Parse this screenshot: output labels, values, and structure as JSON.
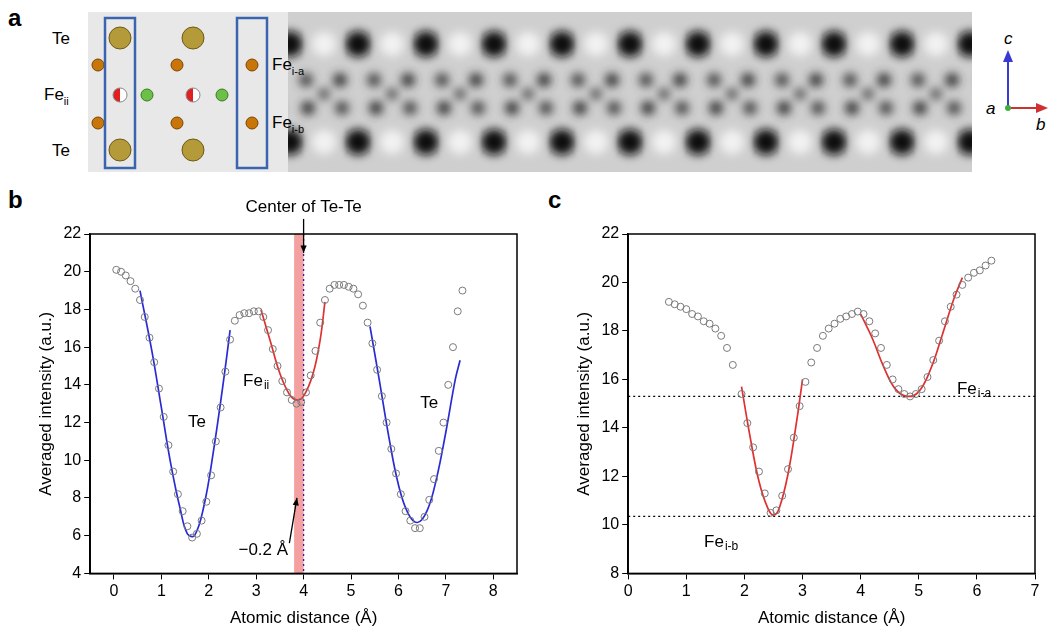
{
  "panel_a": {
    "label": "a",
    "atom_labels_left": [
      {
        "text": "Te"
      },
      {
        "text": "Fe",
        "subscript": "ii"
      },
      {
        "text": "Te"
      }
    ],
    "atom_labels_right": [
      {
        "text": "Fe",
        "subscript": "i-a"
      },
      {
        "text": "Fe",
        "subscript": "i-b"
      }
    ],
    "axes": {
      "up": "c",
      "out": "a",
      "right": "b"
    }
  },
  "chart_data": [
    {
      "panel": "b",
      "type": "scatter",
      "x_label": "Atomic distance (Å)",
      "y_label": "Averaged intensity (a.u.)",
      "xlim": [
        -0.5,
        8.5
      ],
      "xticks": [
        0,
        1,
        2,
        3,
        4,
        5,
        6,
        7,
        8
      ],
      "ylim": [
        4,
        22
      ],
      "yticks": [
        4,
        6,
        8,
        10,
        12,
        14,
        16,
        18,
        20,
        22
      ],
      "grid": false,
      "series": [
        {
          "type": "scatter",
          "marker": "circle_open",
          "color": "#7a7a7a",
          "x": [
            0.05,
            0.15,
            0.25,
            0.35,
            0.45,
            0.55,
            0.65,
            0.75,
            0.85,
            0.95,
            1.05,
            1.15,
            1.25,
            1.35,
            1.45,
            1.55,
            1.65,
            1.75,
            1.85,
            1.95,
            2.05,
            2.15,
            2.25,
            2.35,
            2.45,
            2.55,
            2.65,
            2.75,
            2.85,
            2.95,
            3.05,
            3.15,
            3.25,
            3.35,
            3.45,
            3.55,
            3.65,
            3.75,
            3.85,
            3.95,
            4.05,
            4.15,
            4.25,
            4.35,
            4.45,
            4.55,
            4.65,
            4.75,
            4.85,
            4.95,
            5.05,
            5.15,
            5.25,
            5.35,
            5.45,
            5.55,
            5.65,
            5.75,
            5.85,
            5.95,
            6.05,
            6.15,
            6.25,
            6.35,
            6.45,
            6.55,
            6.65,
            6.75,
            6.85,
            6.95,
            7.05,
            7.15,
            7.25,
            7.35
          ],
          "values": [
            20.1,
            20.0,
            19.8,
            19.5,
            19.1,
            18.5,
            17.6,
            16.5,
            15.2,
            13.8,
            12.3,
            10.8,
            9.4,
            8.2,
            7.3,
            6.5,
            5.9,
            6.1,
            6.8,
            7.8,
            9.2,
            11.0,
            12.8,
            14.7,
            16.4,
            17.4,
            17.7,
            17.8,
            17.8,
            17.9,
            17.9,
            17.6,
            16.9,
            15.9,
            15.0,
            14.2,
            13.6,
            13.2,
            13.0,
            13.1,
            13.6,
            14.5,
            15.8,
            17.3,
            18.5,
            19.1,
            19.3,
            19.3,
            19.3,
            19.2,
            19.1,
            18.8,
            18.2,
            17.3,
            16.2,
            14.8,
            13.4,
            12.0,
            10.6,
            9.3,
            8.2,
            7.3,
            6.8,
            6.4,
            6.4,
            7.0,
            7.9,
            9.0,
            10.5,
            12.0,
            14.0,
            16.0,
            17.9,
            19.0
          ]
        },
        {
          "type": "line",
          "color": "#2b2bd6",
          "x": [
            0.55,
            0.8,
            1.0,
            1.2,
            1.4,
            1.55,
            1.7,
            1.9,
            2.1,
            2.3,
            2.45
          ],
          "values": [
            19.0,
            15.8,
            12.8,
            9.8,
            7.4,
            6.1,
            6.0,
            7.6,
            10.5,
            14.0,
            16.9
          ]
        },
        {
          "type": "line",
          "color": "#e03030",
          "x": [
            3.1,
            3.3,
            3.5,
            3.7,
            3.85,
            4.0,
            4.2,
            4.35,
            4.45
          ],
          "values": [
            18.0,
            16.3,
            14.6,
            13.5,
            13.2,
            13.4,
            14.6,
            16.4,
            18.4
          ]
        },
        {
          "type": "line",
          "color": "#2b2bd6",
          "x": [
            5.4,
            5.6,
            5.8,
            6.0,
            6.2,
            6.4,
            6.6,
            6.8,
            7.0,
            7.2,
            7.3
          ],
          "values": [
            17.1,
            14.2,
            11.2,
            8.7,
            7.2,
            6.7,
            7.3,
            9.0,
            11.5,
            14.3,
            15.3
          ]
        }
      ],
      "bands": [
        {
          "x": [
            3.8,
            4.0
          ],
          "color": "#f08080"
        }
      ],
      "vlines": [
        {
          "x": 4.0,
          "color": "#2020a0",
          "line_style": "dotted"
        }
      ],
      "annotations": [
        {
          "text": "Te",
          "x": 1.75,
          "y": 12
        },
        {
          "text": "Fe",
          "subscript": "ii",
          "x": 3.0,
          "y": 14.2
        },
        {
          "text": "Te",
          "x": 6.65,
          "y": 13
        },
        {
          "text": "Center of Te-Te",
          "x": 4.0,
          "y": 23.4,
          "arrow_from": [
            4.0,
            22.8
          ],
          "arrow_to": [
            4.0,
            21.0
          ]
        },
        {
          "text": "−0.2 Å",
          "x": 3.15,
          "y": 5.2,
          "arrow_from": [
            3.7,
            5.6
          ],
          "arrow_to": [
            3.86,
            8.0
          ]
        }
      ]
    },
    {
      "panel": "c",
      "type": "scatter",
      "x_label": "Atomic distance (Å)",
      "y_label": "Averaged intensity (a.u.)",
      "xlim": [
        0,
        7
      ],
      "xticks": [
        0,
        1,
        2,
        3,
        4,
        5,
        6,
        7
      ],
      "ylim": [
        8,
        22
      ],
      "yticks": [
        8,
        10,
        12,
        14,
        16,
        18,
        20,
        22
      ],
      "grid": false,
      "series": [
        {
          "type": "scatter",
          "marker": "circle_open",
          "color": "#7a7a7a",
          "x": [
            0.7,
            0.8,
            0.9,
            1.0,
            1.1,
            1.2,
            1.3,
            1.4,
            1.5,
            1.6,
            1.7,
            1.8,
            1.95,
            2.05,
            2.15,
            2.25,
            2.35,
            2.45,
            2.55,
            2.65,
            2.75,
            2.85,
            2.95,
            3.05,
            3.15,
            3.25,
            3.35,
            3.45,
            3.55,
            3.65,
            3.75,
            3.85,
            3.95,
            4.05,
            4.15,
            4.25,
            4.35,
            4.45,
            4.55,
            4.65,
            4.75,
            4.85,
            4.95,
            5.05,
            5.15,
            5.25,
            5.35,
            5.45,
            5.55,
            5.65,
            5.75,
            5.85,
            5.95,
            6.05,
            6.15,
            6.25
          ],
          "values": [
            19.2,
            19.1,
            19.0,
            18.9,
            18.7,
            18.6,
            18.4,
            18.3,
            18.1,
            17.8,
            17.3,
            16.6,
            15.4,
            14.2,
            13.2,
            12.2,
            11.3,
            10.5,
            10.6,
            11.2,
            12.3,
            13.6,
            14.9,
            15.9,
            16.7,
            17.3,
            17.8,
            18.1,
            18.3,
            18.5,
            18.6,
            18.7,
            18.8,
            18.7,
            18.4,
            17.9,
            17.3,
            16.6,
            16.0,
            15.6,
            15.4,
            15.3,
            15.4,
            15.6,
            16.1,
            16.8,
            17.6,
            18.4,
            19.0,
            19.5,
            19.9,
            20.2,
            20.4,
            20.5,
            20.7,
            20.9
          ]
        },
        {
          "type": "line",
          "color": "#e03030",
          "x": [
            1.95,
            2.1,
            2.25,
            2.4,
            2.5,
            2.6,
            2.75,
            2.9,
            3.0
          ],
          "values": [
            15.7,
            13.6,
            11.8,
            10.7,
            10.4,
            10.7,
            12.1,
            14.3,
            16.0
          ]
        },
        {
          "type": "line",
          "color": "#e03030",
          "x": [
            4.0,
            4.2,
            4.4,
            4.6,
            4.8,
            5.0,
            5.2,
            5.4,
            5.6,
            5.75
          ],
          "values": [
            18.7,
            17.7,
            16.5,
            15.6,
            15.3,
            15.5,
            16.4,
            17.8,
            19.3,
            20.2
          ]
        }
      ],
      "hlines": [
        {
          "y": 15.3,
          "color": "#000000",
          "line_style": "dotted"
        },
        {
          "y": 10.35,
          "color": "#000000",
          "line_style": "dotted"
        }
      ],
      "annotations": [
        {
          "text": "Fe",
          "subscript": "i-b",
          "x": 1.6,
          "y": 9.3
        },
        {
          "text": "Fe",
          "subscript": "i-a",
          "x": 5.95,
          "y": 15.6
        }
      ]
    }
  ]
}
